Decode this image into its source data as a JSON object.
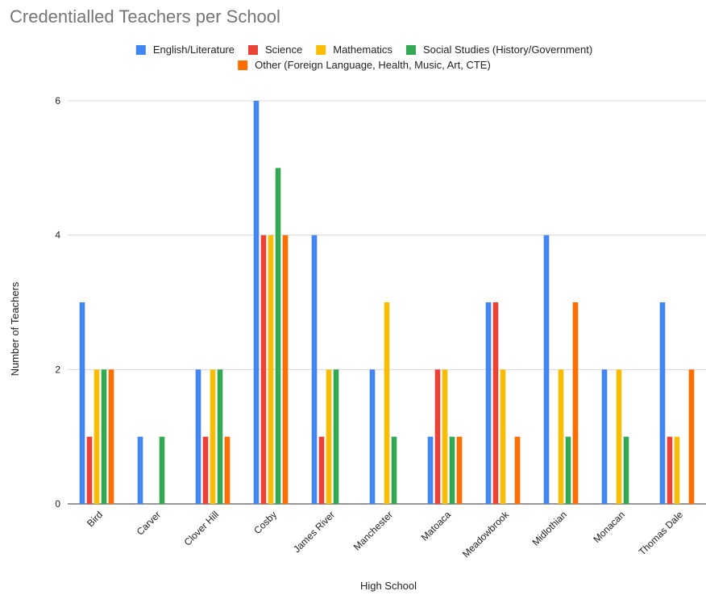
{
  "chart_data": {
    "type": "bar",
    "title": "Credentialled Teachers per School",
    "xlabel": "High School",
    "ylabel": "Number of Teachers",
    "ylim": [
      0,
      6
    ],
    "yticks": [
      0,
      2,
      4,
      6
    ],
    "grid": true,
    "legend_position": "top",
    "categories": [
      "Bird",
      "Carver",
      "Clover Hill",
      "Cosby",
      "James River",
      "Manchester",
      "Matoaca",
      "Meadowbrook",
      "Midlothian",
      "Monacan",
      "Thomas Dale"
    ],
    "series": [
      {
        "name": "English/Literature",
        "color": "#4285f4",
        "values": [
          3,
          1,
          2,
          6,
          4,
          2,
          1,
          3,
          4,
          2,
          3
        ]
      },
      {
        "name": "Science",
        "color": "#ea4335",
        "values": [
          1,
          0,
          1,
          4,
          1,
          0,
          2,
          3,
          0,
          0,
          1
        ]
      },
      {
        "name": "Mathematics",
        "color": "#fbbc04",
        "values": [
          2,
          0,
          2,
          4,
          2,
          3,
          2,
          2,
          2,
          2,
          1
        ]
      },
      {
        "name": "Social Studies (History/Government)",
        "color": "#34a853",
        "values": [
          2,
          1,
          2,
          5,
          2,
          1,
          1,
          0,
          1,
          1,
          0
        ]
      },
      {
        "name": "Other (Foreign Language, Health, Music, Art, CTE)",
        "color": "#ff6d01",
        "values": [
          2,
          0,
          1,
          4,
          0,
          0,
          1,
          1,
          3,
          0,
          2
        ]
      }
    ]
  }
}
